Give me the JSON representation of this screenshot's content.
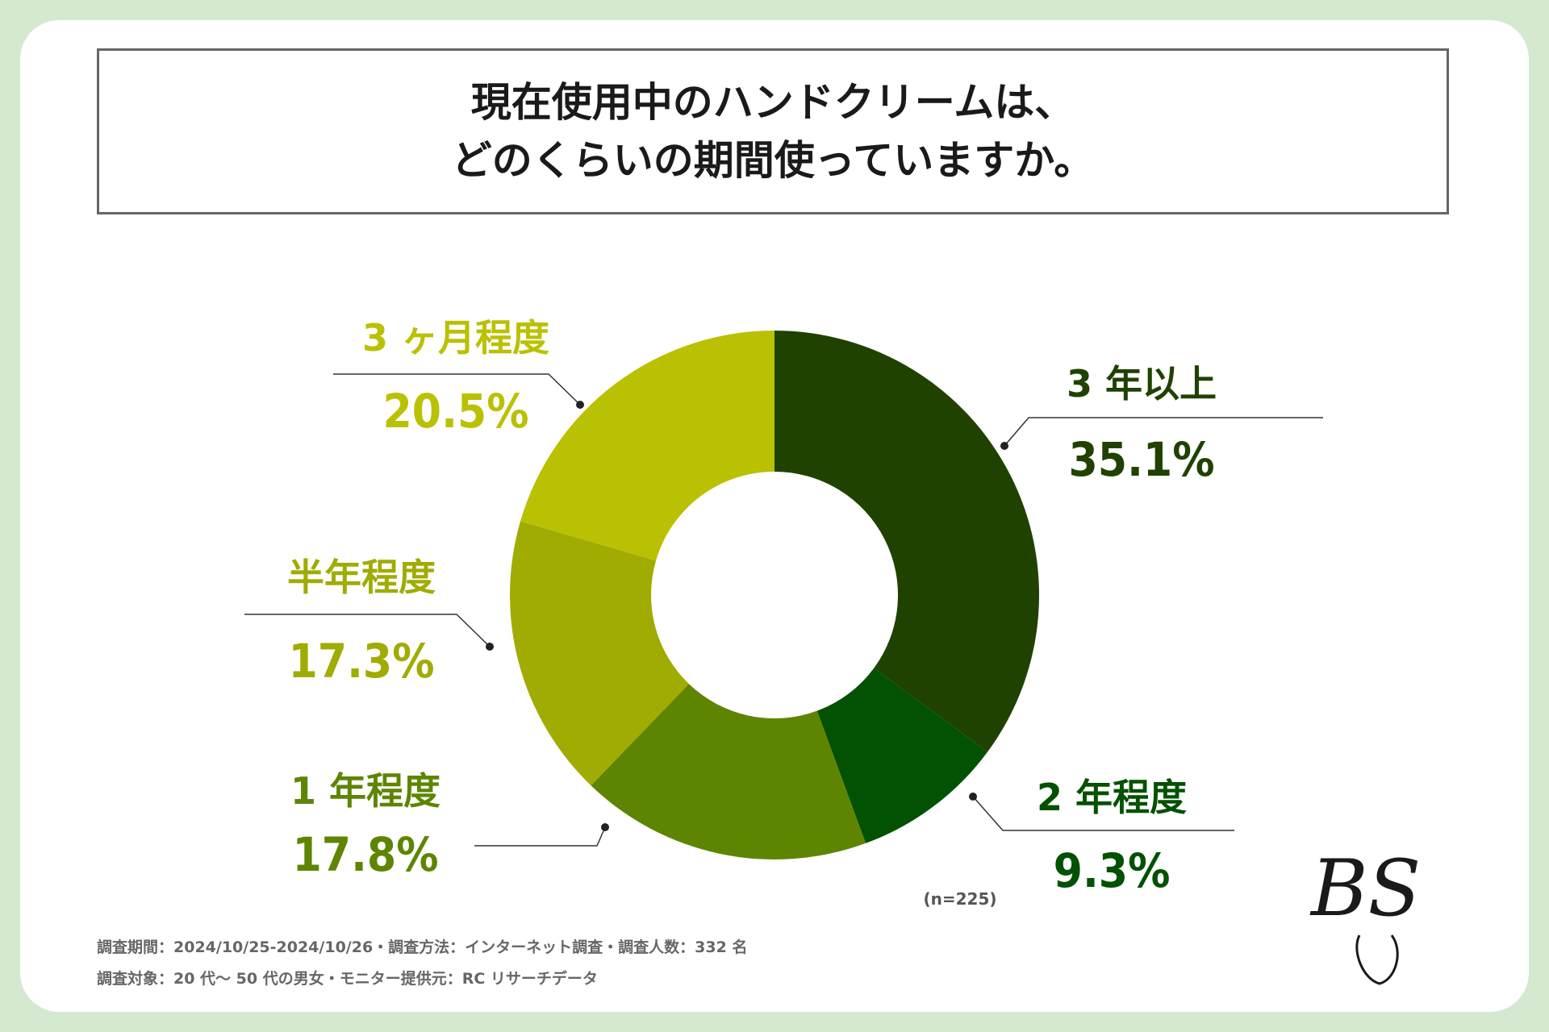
{
  "title": {
    "line1": "現在使用中のハンドクリームは、",
    "line2": "どのくらいの期間使っていますか。"
  },
  "chart_data": {
    "type": "pie",
    "donut": true,
    "categories": [
      "3年以上",
      "2年程度",
      "1年程度",
      "半年程度",
      "3ヶ月程度"
    ],
    "display_labels": [
      "3 年以上",
      "2 年程度",
      "1 年程度",
      "半年程度",
      "3 ヶ月程度"
    ],
    "values": [
      35.1,
      9.3,
      17.8,
      17.3,
      20.5
    ],
    "value_labels": [
      "35.1%",
      "9.3%",
      "17.8%",
      "17.3%",
      "20.5%"
    ],
    "colors": [
      "#1f4201",
      "#035102",
      "#5e8502",
      "#a0ac02",
      "#bac102"
    ],
    "sample_size": "(n=225)",
    "legend": "none"
  },
  "footnotes": {
    "line1": "調査期間：2024/10/25-2024/10/26・調査方法：インターネット調査・調査人数：332 名",
    "line2": "調査対象：20 代〜 50 代の男女・モニター提供元：RC リサーチデータ"
  },
  "logo": {
    "text": "BS"
  }
}
